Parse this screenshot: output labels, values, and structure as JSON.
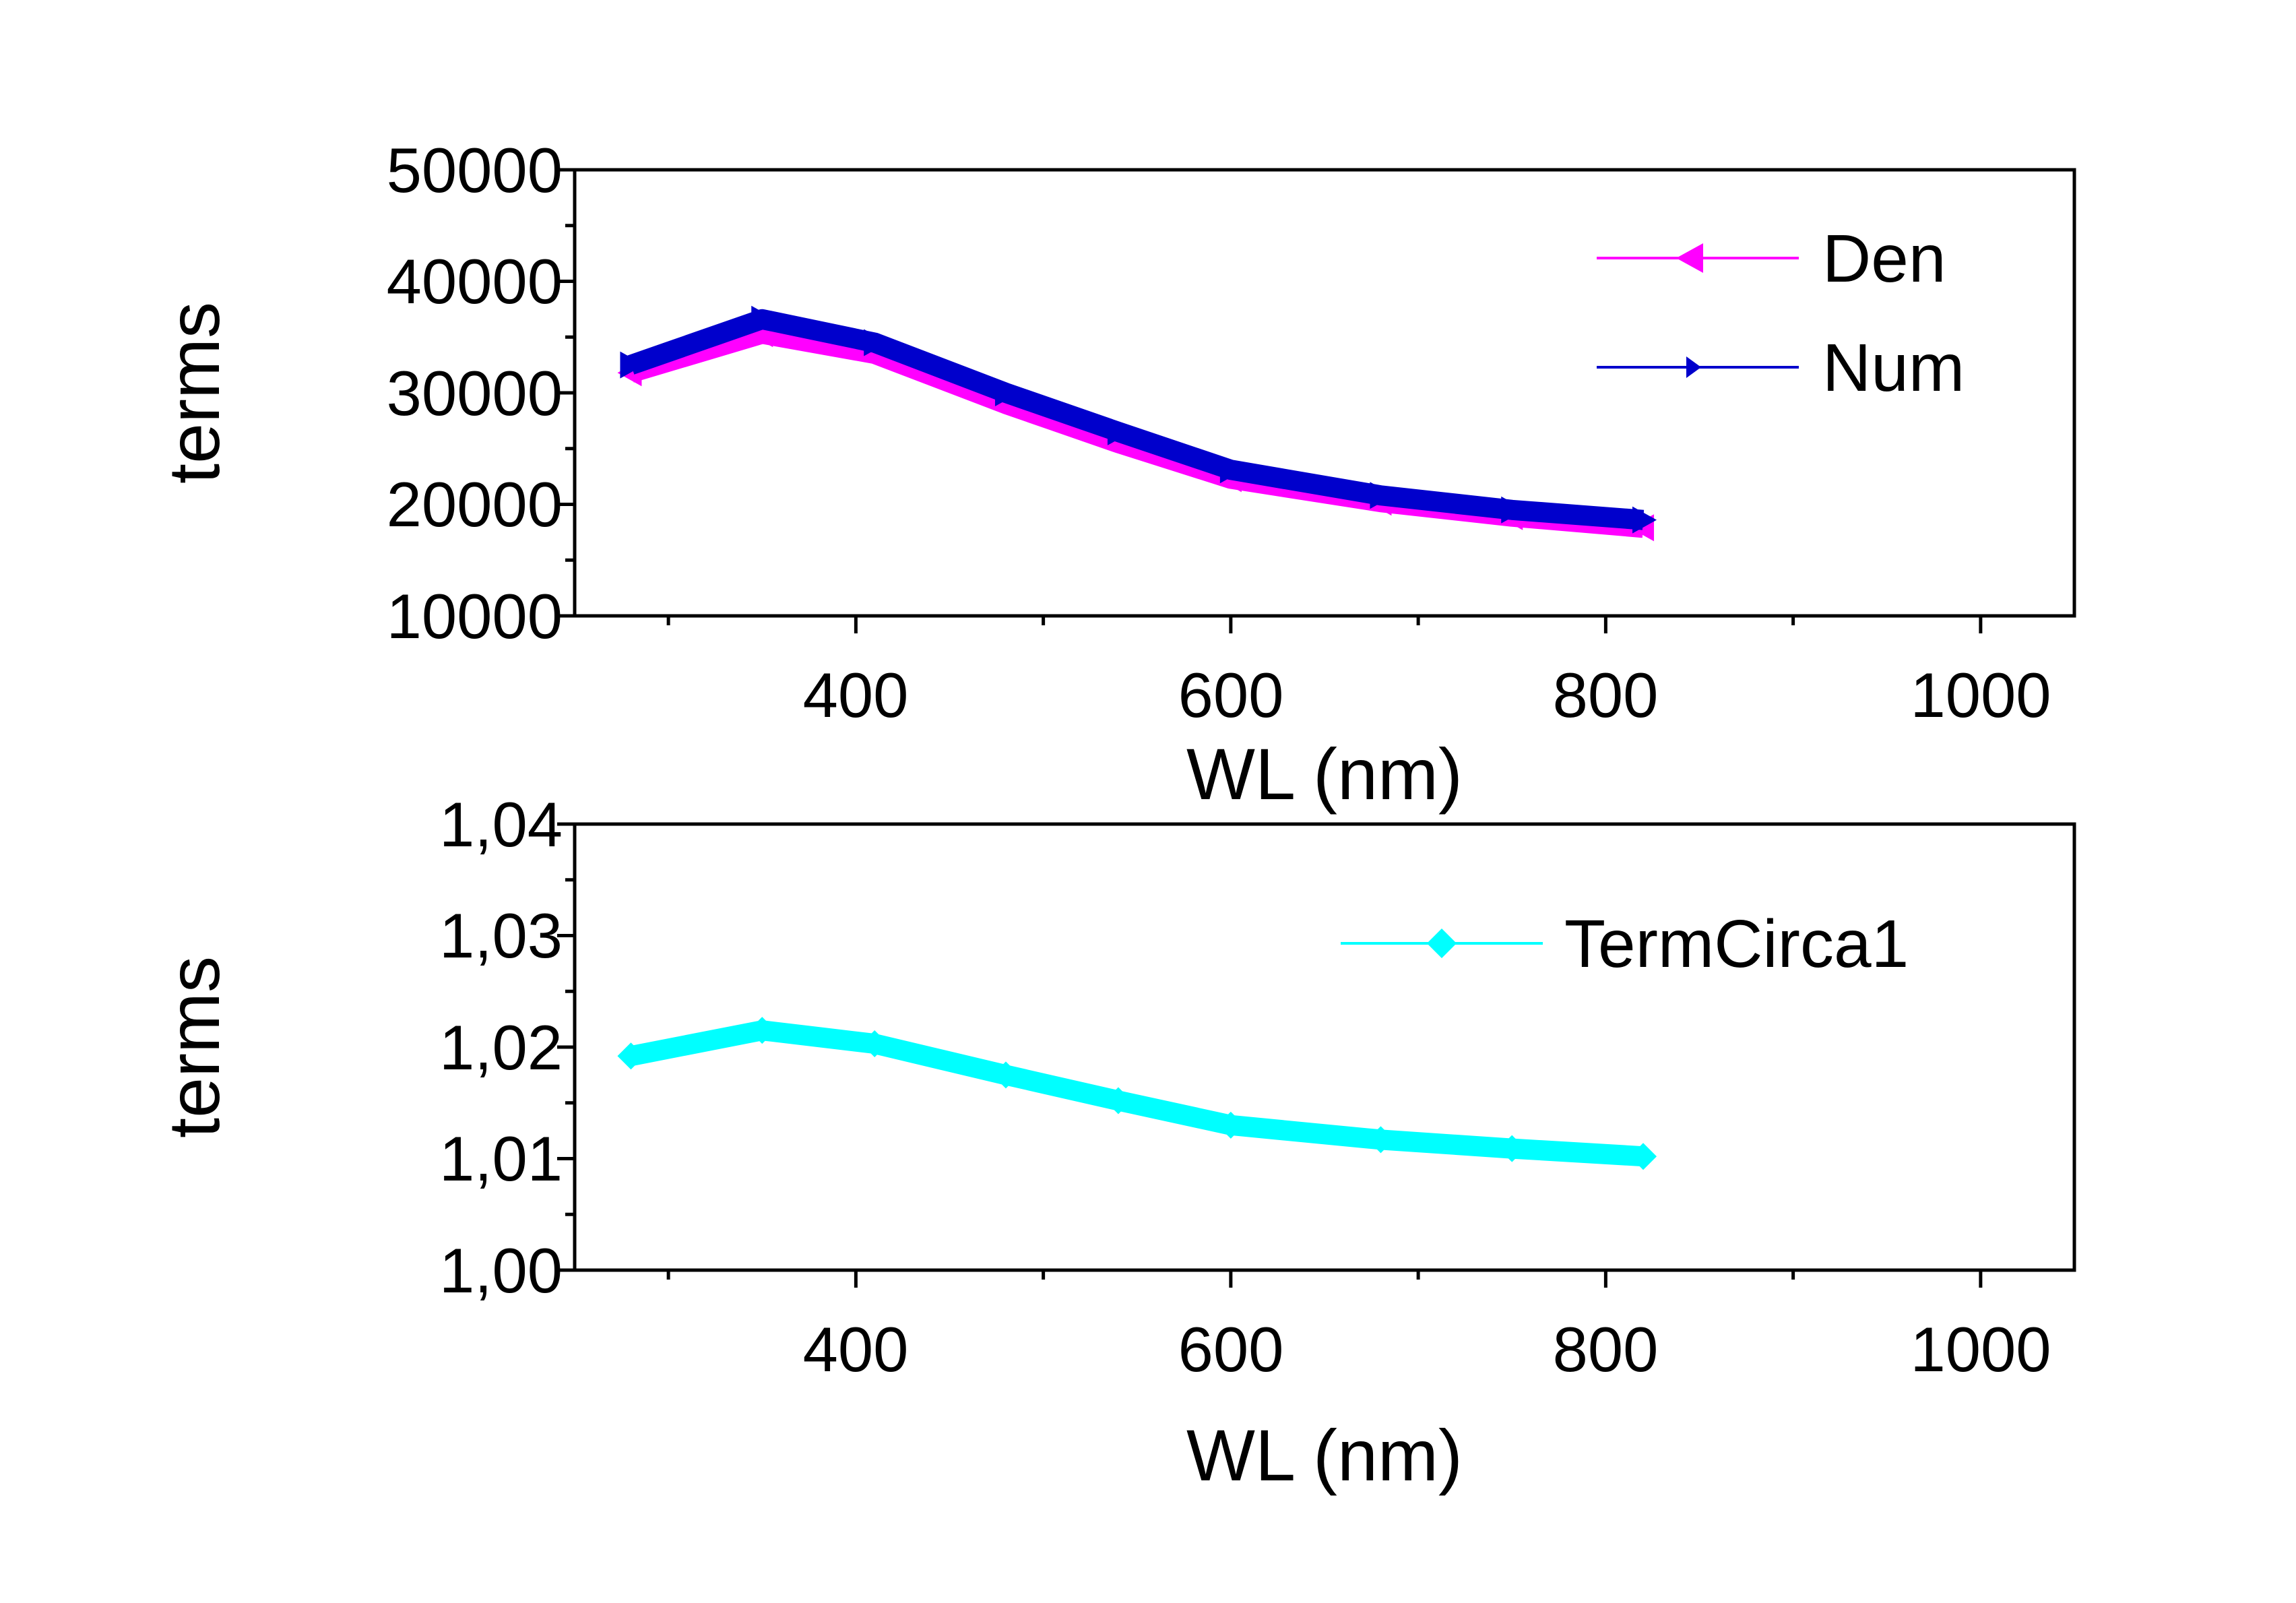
{
  "chart_data": [
    {
      "type": "line",
      "xlabel": "WL  (nm)",
      "ylabel": "terms",
      "xlim": [
        250,
        1050
      ],
      "ylim": [
        10000,
        50000
      ],
      "x_ticks": [
        400,
        600,
        800,
        1000
      ],
      "x_tick_labels": [
        "400",
        "600",
        "800",
        "1000"
      ],
      "x_minor_ticks": [
        300,
        500,
        700,
        900
      ],
      "y_ticks": [
        10000,
        20000,
        30000,
        40000,
        50000
      ],
      "y_tick_labels": [
        "10000",
        "20000",
        "30000",
        "40000",
        "50000"
      ],
      "grid": false,
      "legend_position": "top-right",
      "series": [
        {
          "name": "Den",
          "color": "#ff00ff",
          "marker": "left-triangle",
          "x": [
            280,
            350,
            410,
            480,
            540,
            600,
            680,
            750,
            820
          ],
          "y": [
            31800,
            35300,
            33500,
            29000,
            25500,
            22300,
            20200,
            18900,
            17900
          ]
        },
        {
          "name": "Num",
          "color": "#0000cc",
          "marker": "right-triangle",
          "x": [
            280,
            350,
            410,
            480,
            540,
            600,
            680,
            750,
            820
          ],
          "y": [
            32500,
            36600,
            34500,
            30000,
            26500,
            23100,
            20800,
            19500,
            18600
          ]
        }
      ]
    },
    {
      "type": "line",
      "xlabel": "WL  (nm)",
      "ylabel": "terms",
      "xlim": [
        250,
        1050
      ],
      "ylim": [
        1.0,
        1.04
      ],
      "x_ticks": [
        400,
        600,
        800,
        1000
      ],
      "x_tick_labels": [
        "400",
        "600",
        "800",
        "1000"
      ],
      "x_minor_ticks": [
        300,
        500,
        700,
        900
      ],
      "y_ticks": [
        1.0,
        1.01,
        1.02,
        1.03,
        1.04
      ],
      "y_tick_labels": [
        "1,00",
        "1,01",
        "1,02",
        "1,03",
        "1,04"
      ],
      "grid": false,
      "legend_position": "top-right",
      "series": [
        {
          "name": "TermCirca1",
          "color": "#00ffff",
          "marker": "diamond",
          "x": [
            280,
            350,
            410,
            480,
            540,
            600,
            680,
            750,
            820
          ],
          "y": [
            1.0192,
            1.0215,
            1.0203,
            1.0175,
            1.0152,
            1.013,
            1.0117,
            1.0109,
            1.0102
          ]
        }
      ]
    }
  ]
}
